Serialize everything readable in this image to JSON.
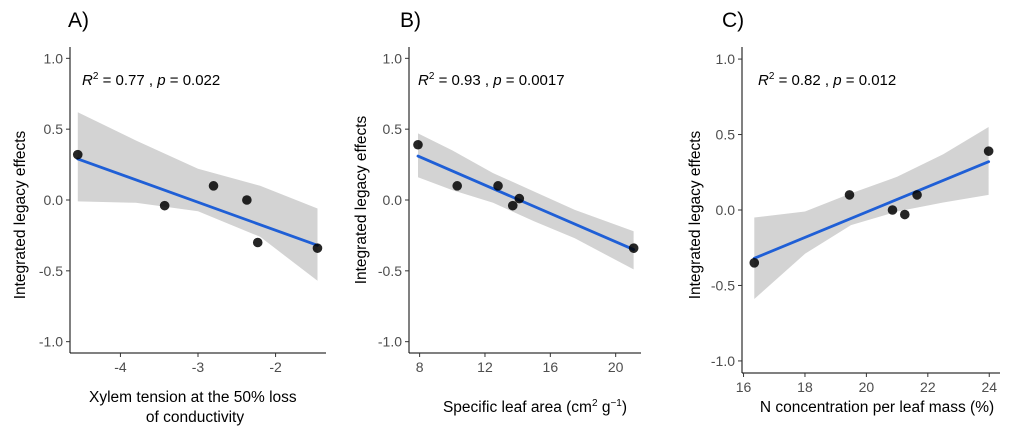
{
  "chart_data": [
    {
      "type": "scatter",
      "panel": "A)",
      "stat": {
        "r2": "0.77",
        "p": "0.022"
      },
      "xlabel": [
        "Xylem tension at the 50% loss",
        "of conductivity"
      ],
      "ylabel": "Integrated legacy effects",
      "xlim": [
        -4.65,
        -1.35
      ],
      "ylim": [
        -1.08,
        1.08
      ],
      "xticks": [
        -4,
        -3,
        -2
      ],
      "yticks": [
        -1.0,
        -0.5,
        0.0,
        0.5,
        1.0
      ],
      "ytick_labels": [
        "-1.0",
        "-0.5",
        "0.0",
        "0.5",
        "1.0"
      ],
      "points": [
        {
          "x": -4.55,
          "y": 0.32
        },
        {
          "x": -3.43,
          "y": -0.04
        },
        {
          "x": -2.8,
          "y": 0.1
        },
        {
          "x": -2.37,
          "y": 0.0
        },
        {
          "x": -2.23,
          "y": -0.3
        },
        {
          "x": -1.46,
          "y": -0.34
        }
      ],
      "fit": {
        "x": [
          -4.55,
          -1.46
        ],
        "y": [
          0.29,
          -0.32
        ]
      },
      "ci": {
        "x": [
          -4.55,
          -3.8,
          -3.0,
          -2.2,
          -1.46
        ],
        "lower": [
          -0.01,
          -0.02,
          -0.08,
          -0.26,
          -0.57
        ],
        "upper": [
          0.62,
          0.42,
          0.22,
          0.1,
          -0.06
        ]
      },
      "colors": {
        "line": "#1f5fd6",
        "band": "#d3d3d3",
        "point": "#000000"
      }
    },
    {
      "type": "scatter",
      "panel": "B)",
      "stat": {
        "r2": "0.93",
        "p": "0.0017"
      },
      "xlabel": [
        "Specific leaf area (cm",
        "2",
        " g",
        "−1",
        ")"
      ],
      "ylabel": "Integrated legacy effects",
      "xlim": [
        7.35,
        21.55
      ],
      "ylim": [
        -1.08,
        1.08
      ],
      "xticks": [
        8,
        12,
        16,
        20
      ],
      "yticks": [
        -1.0,
        -0.5,
        0.0,
        0.5,
        1.0
      ],
      "ytick_labels": [
        "-1.0",
        "-0.5",
        "0.0",
        "0.5",
        "1.0"
      ],
      "points": [
        {
          "x": 7.9,
          "y": 0.39
        },
        {
          "x": 10.3,
          "y": 0.1
        },
        {
          "x": 12.8,
          "y": 0.1
        },
        {
          "x": 13.7,
          "y": -0.04
        },
        {
          "x": 14.1,
          "y": 0.01
        },
        {
          "x": 21.1,
          "y": -0.34
        }
      ],
      "fit": {
        "x": [
          7.9,
          21.1
        ],
        "y": [
          0.31,
          -0.35
        ]
      },
      "ci": {
        "x": [
          7.9,
          10.0,
          12.5,
          15.0,
          17.5,
          21.1
        ],
        "lower": [
          0.16,
          0.07,
          -0.02,
          -0.15,
          -0.27,
          -0.49
        ],
        "upper": [
          0.47,
          0.35,
          0.19,
          0.06,
          -0.07,
          -0.22
        ]
      },
      "colors": {
        "line": "#1f5fd6",
        "band": "#d3d3d3",
        "point": "#000000"
      }
    },
    {
      "type": "scatter",
      "panel": "C)",
      "stat": {
        "r2": "0.82",
        "p": "0.012"
      },
      "xlabel": [
        "N concentration per leaf mass (%)"
      ],
      "ylabel": "Integrated legacy effects",
      "xlim": [
        15.95,
        24.35
      ],
      "ylim": [
        -1.08,
        1.08
      ],
      "xticks": [
        16,
        18,
        20,
        22,
        24
      ],
      "yticks": [
        -1.0,
        -0.5,
        0.0,
        0.5,
        1.0
      ],
      "ytick_labels": [
        "-1.0",
        "-0.5",
        "0.0",
        "0.5",
        "1.0"
      ],
      "points": [
        {
          "x": 16.35,
          "y": -0.35
        },
        {
          "x": 19.45,
          "y": 0.1
        },
        {
          "x": 20.85,
          "y": 0.0
        },
        {
          "x": 21.25,
          "y": -0.03
        },
        {
          "x": 21.65,
          "y": 0.1
        },
        {
          "x": 23.98,
          "y": 0.39
        }
      ],
      "fit": {
        "x": [
          16.35,
          23.98
        ],
        "y": [
          -0.32,
          0.32
        ]
      },
      "ci": {
        "x": [
          16.35,
          18.0,
          19.5,
          21.0,
          22.5,
          23.98
        ],
        "lower": [
          -0.59,
          -0.29,
          -0.1,
          -0.01,
          0.05,
          0.1
        ],
        "upper": [
          -0.05,
          -0.01,
          0.11,
          0.22,
          0.37,
          0.55
        ]
      },
      "colors": {
        "line": "#1f5fd6",
        "band": "#d3d3d3",
        "point": "#000000"
      }
    }
  ]
}
